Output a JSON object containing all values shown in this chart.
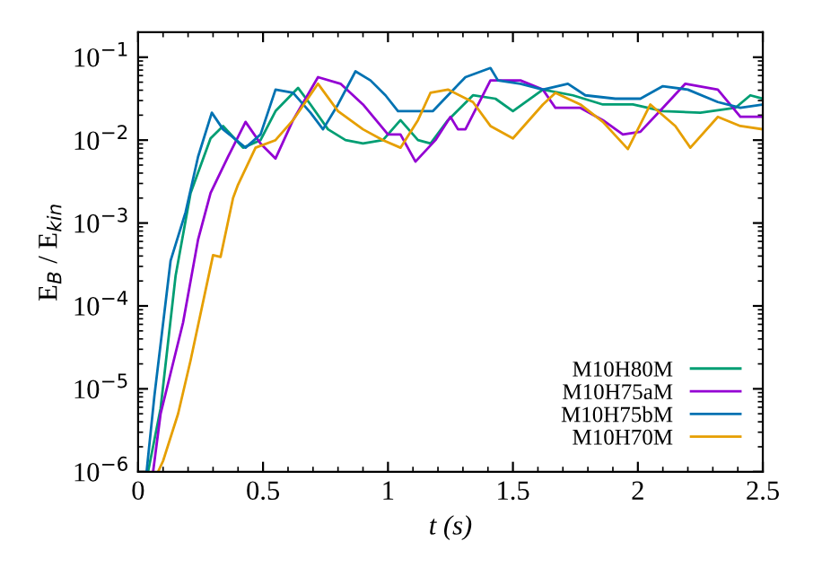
{
  "chart_data": {
    "type": "line",
    "xlabel": "t (s)",
    "ylabel": "E$_{B}$ / E$_{kin}$",
    "log": "y",
    "xlim": [
      0,
      2.5
    ],
    "xticks": [
      0,
      0.5,
      1,
      1.5,
      2,
      2.5
    ],
    "ylim": [
      1e-06,
      0.2
    ],
    "yticks": [
      {
        "value": 1e-06,
        "label": "10$^{−6}$"
      },
      {
        "value": 1e-05,
        "label": "10$^{−5}$"
      },
      {
        "value": 0.0001,
        "label": "10$^{−4}$"
      },
      {
        "value": 0.001,
        "label": "10$^{−3}$"
      },
      {
        "value": 0.01,
        "label": "10$^{−2}$"
      },
      {
        "value": 0.1,
        "label": "10$^{−1}$"
      }
    ],
    "grid": false,
    "legend": "bottom right",
    "line_style": "solid",
    "marker": "none",
    "series": [
      {
        "name": "M10H80M",
        "color": "#009e73",
        "x": [
          0.04,
          0.09,
          0.15,
          0.21,
          0.29,
          0.34,
          0.42,
          0.49,
          0.55,
          0.64,
          0.69,
          0.76,
          0.83,
          0.9,
          0.98,
          1.05,
          1.12,
          1.17,
          1.24,
          1.34,
          1.43,
          1.5,
          1.62,
          1.74,
          1.86,
          1.98,
          2.1,
          2.25,
          2.39,
          2.45,
          2.5
        ],
        "values": [
          1e-06,
          5.8e-06,
          0.00023,
          0.0023,
          0.0105,
          0.0148,
          0.0081,
          0.01,
          0.0224,
          0.0427,
          0.0269,
          0.0135,
          0.01,
          0.0091,
          0.01,
          0.0174,
          0.01,
          0.0091,
          0.0174,
          0.0347,
          0.0316,
          0.0224,
          0.0407,
          0.0347,
          0.0269,
          0.0269,
          0.0224,
          0.0214,
          0.0245,
          0.0347,
          0.0316
        ]
      },
      {
        "name": "M10H75aM",
        "color": "#9400d3",
        "x": [
          0.06,
          0.09,
          0.18,
          0.24,
          0.29,
          0.36,
          0.43,
          0.49,
          0.55,
          0.62,
          0.72,
          0.81,
          0.9,
          1.0,
          1.05,
          1.11,
          1.19,
          1.25,
          1.28,
          1.31,
          1.41,
          1.53,
          1.62,
          1.67,
          1.77,
          1.86,
          1.94,
          2.01,
          2.1,
          2.19,
          2.32,
          2.41,
          2.5
        ],
        "values": [
          1e-06,
          5e-06,
          6.3e-05,
          0.00063,
          0.0023,
          0.0063,
          0.0166,
          0.0091,
          0.006,
          0.0174,
          0.0575,
          0.0479,
          0.0269,
          0.0117,
          0.0117,
          0.0055,
          0.01,
          0.0191,
          0.0135,
          0.0135,
          0.0525,
          0.0525,
          0.0407,
          0.0245,
          0.0245,
          0.0174,
          0.0117,
          0.0126,
          0.0245,
          0.0479,
          0.0407,
          0.0191,
          0.0191
        ]
      },
      {
        "name": "M10H75bM",
        "color": "#0072b2",
        "x": [
          0.034,
          0.065,
          0.13,
          0.19,
          0.24,
          0.295,
          0.34,
          0.43,
          0.49,
          0.55,
          0.62,
          0.69,
          0.74,
          0.8,
          0.87,
          0.93,
          0.99,
          1.04,
          1.1,
          1.18,
          1.24,
          1.31,
          1.41,
          1.44,
          1.53,
          1.62,
          1.72,
          1.79,
          1.91,
          2.01,
          2.1,
          2.2,
          2.32,
          2.41,
          2.5
        ],
        "values": [
          1e-06,
          8.1e-06,
          0.00035,
          0.00135,
          0.0063,
          0.0214,
          0.0135,
          0.0081,
          0.0117,
          0.0407,
          0.0372,
          0.0214,
          0.0135,
          0.0269,
          0.0676,
          0.0525,
          0.0347,
          0.0224,
          0.0224,
          0.0224,
          0.0347,
          0.0575,
          0.0741,
          0.0525,
          0.0479,
          0.0407,
          0.0479,
          0.0347,
          0.0316,
          0.0316,
          0.0447,
          0.0407,
          0.0288,
          0.0245,
          0.0269
        ]
      },
      {
        "name": "M10H70M",
        "color": "#e69f00",
        "x": [
          0.08,
          0.1,
          0.16,
          0.21,
          0.3,
          0.33,
          0.38,
          0.4,
          0.47,
          0.55,
          0.62,
          0.72,
          0.8,
          0.9,
          0.98,
          1.05,
          1.12,
          1.17,
          1.24,
          1.34,
          1.41,
          1.5,
          1.62,
          1.67,
          1.77,
          1.86,
          1.96,
          2.05,
          2.15,
          2.21,
          2.32,
          2.41,
          2.5
        ],
        "values": [
          1e-06,
          1.35e-06,
          5e-06,
          2.2e-05,
          0.00041,
          0.00039,
          0.002,
          0.0029,
          0.0081,
          0.01,
          0.0174,
          0.0479,
          0.0224,
          0.0135,
          0.01,
          0.0081,
          0.0174,
          0.0372,
          0.0407,
          0.0288,
          0.0148,
          0.0105,
          0.0269,
          0.0372,
          0.0269,
          0.0166,
          0.0078,
          0.0269,
          0.0148,
          0.0081,
          0.0191,
          0.0148,
          0.0135
        ]
      }
    ]
  }
}
